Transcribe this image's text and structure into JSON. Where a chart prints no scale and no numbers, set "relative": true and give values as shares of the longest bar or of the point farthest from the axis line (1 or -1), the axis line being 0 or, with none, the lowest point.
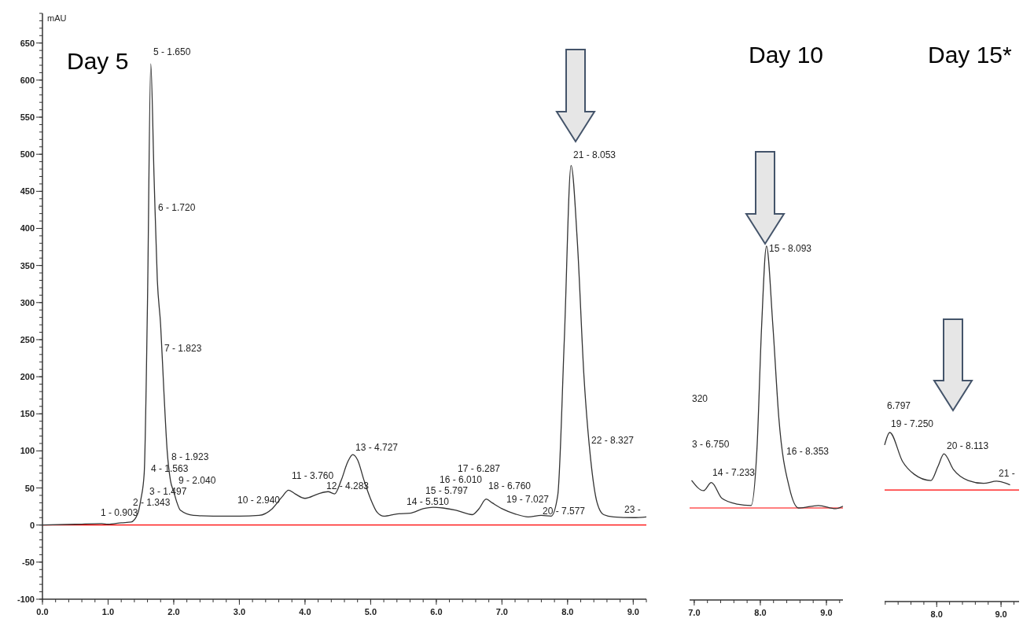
{
  "chart_data": [
    {
      "type": "line",
      "title": "Day 5",
      "ylabel": "mAU",
      "color": "#333333",
      "x": [
        0,
        0.5,
        0.9,
        1.0,
        1.2,
        1.35,
        1.45,
        1.5,
        1.55,
        1.6,
        1.65,
        1.7,
        1.75,
        1.8,
        1.85,
        1.9,
        1.95,
        2.0,
        2.05,
        2.1,
        2.3,
        2.6,
        3.0,
        3.3,
        3.5,
        3.65,
        3.75,
        3.85,
        4.0,
        4.2,
        4.35,
        4.45,
        4.55,
        4.65,
        4.727,
        4.8,
        4.9,
        5.0,
        5.1,
        5.2,
        5.4,
        5.6,
        5.8,
        5.95,
        6.1,
        6.3,
        6.55,
        6.65,
        6.76,
        6.85,
        7.0,
        7.2,
        7.4,
        7.6,
        7.75,
        7.85,
        7.95,
        8.053,
        8.15,
        8.25,
        8.35,
        8.45,
        8.55,
        8.7,
        9.0,
        9.2
      ],
      "values": [
        0,
        1,
        2,
        1,
        3,
        4,
        15,
        35,
        70,
        300,
        622,
        470,
        330,
        270,
        180,
        100,
        60,
        45,
        30,
        20,
        13,
        12,
        12,
        13,
        22,
        38,
        47,
        42,
        36,
        42,
        45,
        42,
        60,
        85,
        95,
        88,
        60,
        35,
        17,
        12,
        15,
        16,
        22,
        24,
        23,
        20,
        14,
        22,
        35,
        30,
        22,
        15,
        11,
        13,
        12,
        40,
        250,
        485,
        380,
        200,
        90,
        30,
        14,
        11,
        10,
        11
      ],
      "xlim": [
        0,
        9.2
      ],
      "xticks": [
        {
          "value": 0,
          "label": "0.0"
        },
        {
          "value": 1,
          "label": "1.0"
        },
        {
          "value": 2,
          "label": "2.0"
        },
        {
          "value": 3,
          "label": "3.0"
        },
        {
          "value": 4,
          "label": "4.0"
        },
        {
          "value": 5,
          "label": "5.0"
        },
        {
          "value": 6,
          "label": "6.0"
        },
        {
          "value": 7,
          "label": "7.0"
        },
        {
          "value": 8,
          "label": "8.0"
        },
        {
          "value": 9,
          "label": "9.0"
        }
      ],
      "ylim": [
        -100,
        690
      ],
      "yticks": [
        -100,
        -50,
        0,
        50,
        100,
        150,
        200,
        250,
        300,
        350,
        400,
        450,
        500,
        550,
        600,
        650
      ],
      "ref_lines": [
        {
          "axis": "y",
          "value": 0,
          "color": "#ff0000"
        }
      ],
      "annotations": [
        "1 - 0.903",
        "2 - 1.343",
        "3 - 1.497",
        "4 - 1.563",
        "5 - 1.650",
        "6 - 1.720",
        "7 - 1.823",
        "8 - 1.923",
        "9 - 2.040",
        "10 - 2.940",
        "11 - 3.760",
        "12 - 4.283",
        "13 - 4.727",
        "14 - 5.510",
        "15 - 5.797",
        "16 - 6.010",
        "17 - 6.287",
        "18 - 6.760",
        "19 - 7.027",
        "20 - 7.577",
        "21 - 8.053",
        "22 - 8.327",
        "23 -"
      ]
    },
    {
      "type": "line",
      "title": "Day 10",
      "relative": true,
      "color": "#333333",
      "x": [
        6.96,
        7.14,
        7.26,
        7.42,
        7.65,
        7.86,
        7.95,
        8.02,
        8.093,
        8.19,
        8.28,
        8.44,
        8.58,
        8.88,
        9.14,
        9.25
      ],
      "values": [
        0.338,
        0.309,
        0.332,
        0.287,
        0.271,
        0.267,
        0.43,
        0.775,
        1,
        0.775,
        0.515,
        0.317,
        0.26,
        0.267,
        0.258,
        0.265
      ],
      "xlim": [
        6.93,
        9.25
      ],
      "xticks": [
        {
          "value": 7,
          "label": "7.0"
        },
        {
          "value": 8,
          "label": "8.0"
        },
        {
          "value": 9,
          "label": "9.0"
        }
      ],
      "ref_lines": [
        {
          "axis": "y",
          "value": 0.26,
          "color": "#ff0000"
        }
      ],
      "annotations": [
        "320",
        "3 - 6.750",
        "14 - 7.233",
        "15 - 8.093",
        "16 - 8.353"
      ]
    },
    {
      "type": "line",
      "title": "Day 15*",
      "relative": true,
      "color": "#333333",
      "x": [
        7.19,
        7.27,
        7.47,
        7.65,
        7.91,
        8.02,
        8.113,
        8.26,
        8.49,
        8.73,
        8.93,
        9.14
      ],
      "values": [
        0.926,
        1,
        0.828,
        0.753,
        0.716,
        0.8,
        0.874,
        0.781,
        0.716,
        0.699,
        0.712,
        0.69
      ],
      "xlim": [
        7.19,
        9.28
      ],
      "xticks": [
        {
          "value": 8,
          "label": "8.0"
        },
        {
          "value": 9,
          "label": "9.0"
        }
      ],
      "ref_lines": [
        {
          "axis": "y",
          "value": 0.66,
          "color": "#ff0000"
        }
      ],
      "annotations": [
        "6.797",
        "19 - 7.250",
        "20 - 8.113",
        "21 -"
      ]
    }
  ]
}
